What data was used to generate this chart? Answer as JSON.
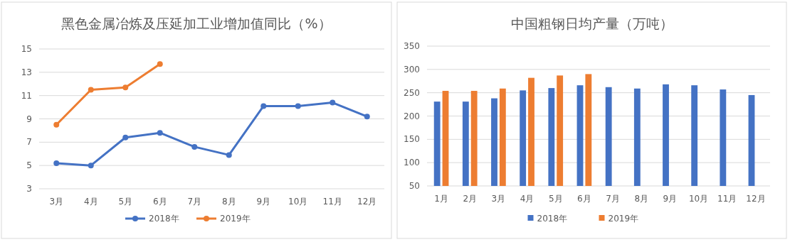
{
  "chart_data": [
    {
      "type": "line",
      "title": "黑色金属冶炼及压延加工业增加值同比（%）",
      "categories": [
        "3月",
        "4月",
        "5月",
        "6月",
        "7月",
        "8月",
        "9月",
        "10月",
        "11月",
        "12月"
      ],
      "series": [
        {
          "name": "2018年",
          "color": "#4472c4",
          "values": [
            5.2,
            5.0,
            7.4,
            7.8,
            6.6,
            5.9,
            10.1,
            10.1,
            10.4,
            9.2
          ]
        },
        {
          "name": "2019年",
          "color": "#ed7d31",
          "values": [
            8.5,
            11.5,
            11.7,
            13.7,
            null,
            null,
            null,
            null,
            null,
            null
          ]
        }
      ],
      "ylim": [
        3,
        15
      ],
      "yticks": [
        3,
        5,
        7,
        9,
        11,
        13,
        15
      ],
      "grid": "y",
      "legend": "bottom",
      "marker": "circle",
      "line_style": "solid"
    },
    {
      "type": "bar",
      "title": "中国粗钢日均产量（万吨）",
      "categories": [
        "1月",
        "2月",
        "3月",
        "4月",
        "5月",
        "6月",
        "7月",
        "8月",
        "9月",
        "10月",
        "11月",
        "12月"
      ],
      "series": [
        {
          "name": "2018年",
          "color": "#4472c4",
          "values": [
            231,
            231,
            238,
            255,
            260,
            266,
            262,
            259,
            268,
            266,
            257,
            245
          ]
        },
        {
          "name": "2019年",
          "color": "#ed7d31",
          "values": [
            254,
            254,
            259,
            282,
            287,
            290,
            null,
            null,
            null,
            null,
            null,
            null
          ]
        }
      ],
      "ylim": [
        50,
        350
      ],
      "yticks": [
        50,
        100,
        150,
        200,
        250,
        300,
        350
      ],
      "grid": "y",
      "legend": "bottom"
    }
  ]
}
